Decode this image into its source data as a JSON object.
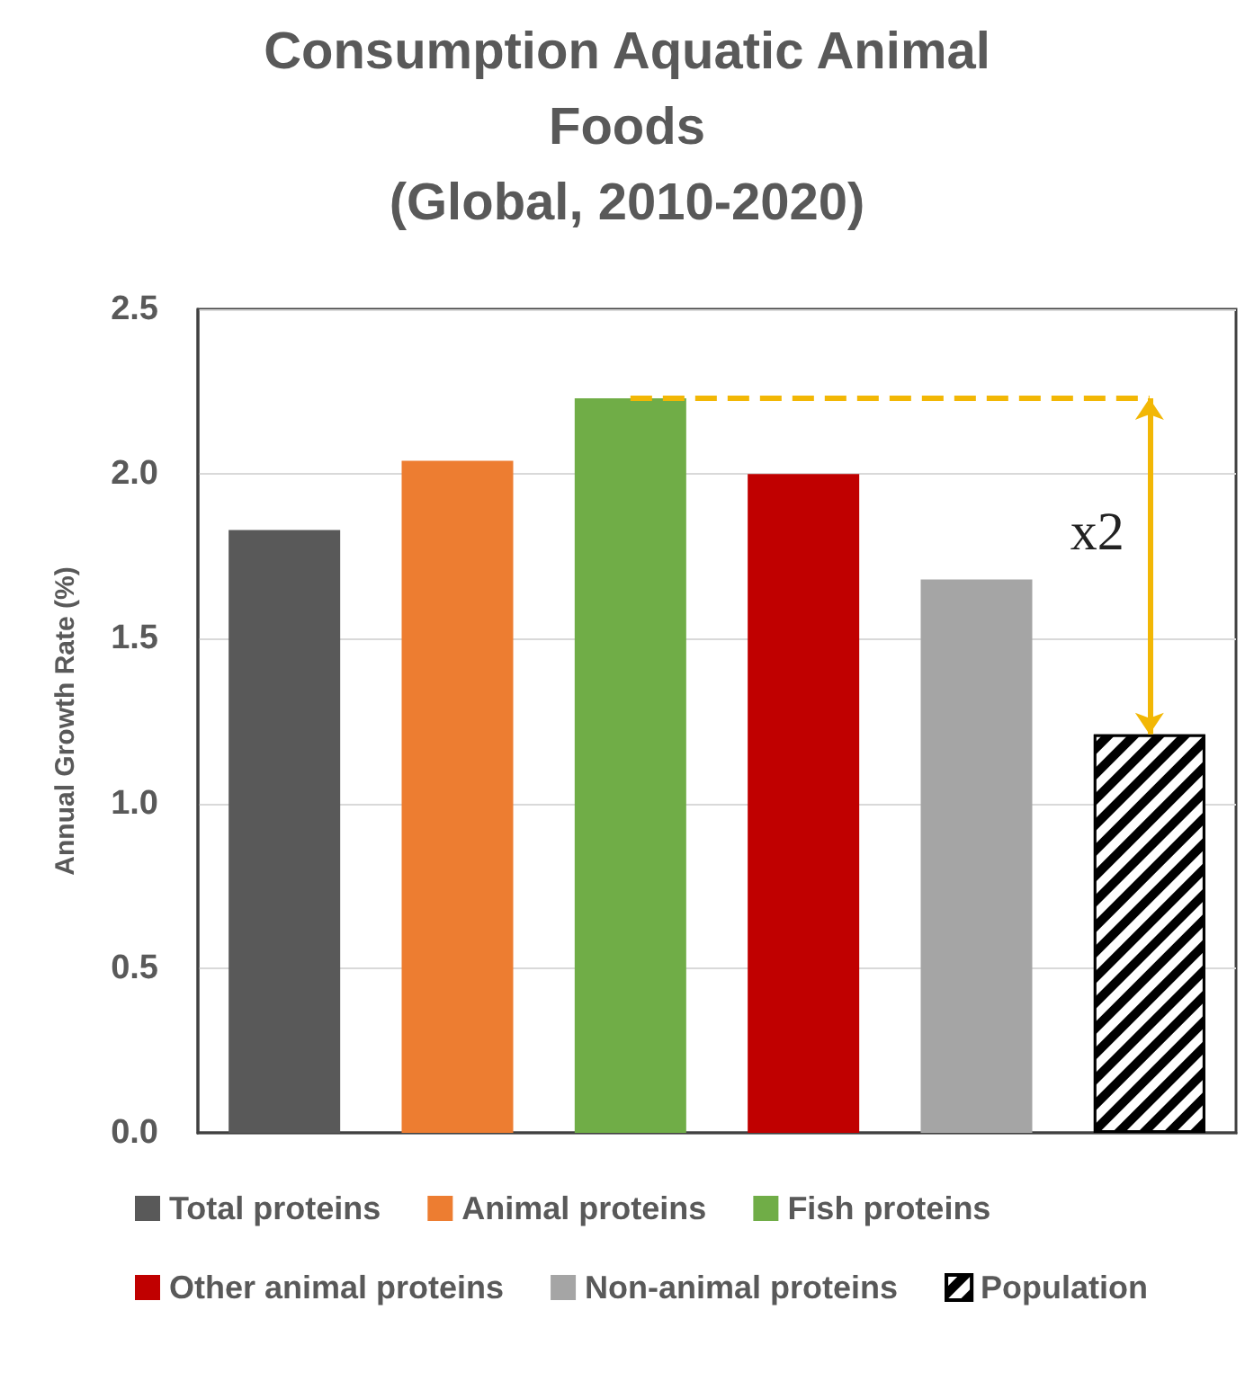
{
  "chart_data": {
    "type": "bar",
    "title": "Consumption Aquatic Animal Foods",
    "subtitle": "(Global, 2010-2020)",
    "ylabel": "Annual Growth Rate (%)",
    "categories": [
      null,
      null,
      null,
      null,
      null,
      null
    ],
    "series": [
      {
        "name": "Total proteins",
        "color": "#595959",
        "values": [
          1.83,
          null,
          null,
          null,
          null,
          null
        ]
      },
      {
        "name": "Animal proteins",
        "color": "#ed7d31",
        "values": [
          null,
          2.04,
          null,
          null,
          null,
          null
        ]
      },
      {
        "name": "Fish proteins",
        "color": "#70ad47",
        "values": [
          null,
          null,
          2.23,
          null,
          null,
          null
        ]
      },
      {
        "name": "Other animal proteins",
        "color": "#c00000",
        "values": [
          null,
          null,
          null,
          2.0,
          null,
          null
        ]
      },
      {
        "name": "Non-animal proteins",
        "color": "#a5a5a5",
        "values": [
          null,
          null,
          null,
          null,
          1.68,
          null
        ]
      },
      {
        "name": "Population",
        "color": "#000000",
        "values": [
          null,
          null,
          null,
          null,
          null,
          1.21
        ]
      }
    ],
    "ylim": [
      0,
      2.5
    ],
    "yticks": [
      {
        "value": 0,
        "label": "0.0"
      },
      {
        "value": 0.5,
        "label": "0.5"
      },
      {
        "value": 1,
        "label": "1.0"
      },
      {
        "value": 1.5,
        "label": "1.5"
      },
      {
        "value": 2,
        "label": "2.0"
      },
      {
        "value": 2.5,
        "label": "2.5"
      }
    ],
    "tick_labels": "y",
    "grid": "y",
    "legend": "bottom",
    "annotations": [
      "x2"
    ]
  }
}
